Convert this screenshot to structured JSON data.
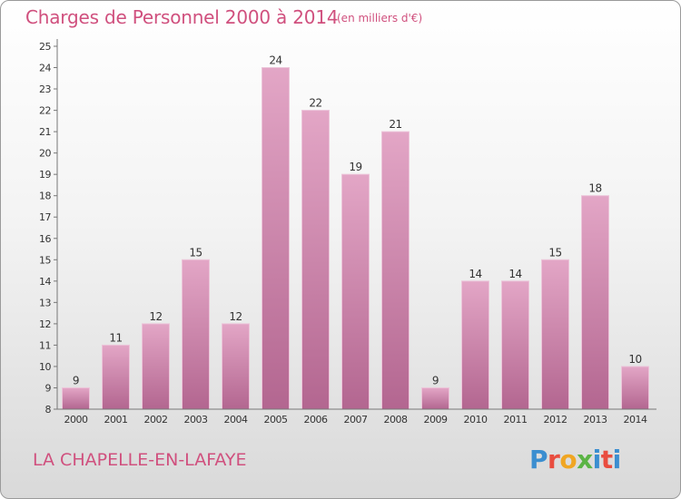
{
  "header": {
    "title": "Charges de Personnel 2000 à 2014",
    "units": "(en milliers d'€)"
  },
  "footer": {
    "commune": "LA CHAPELLE-EN-LAFAYE",
    "logo_letters": [
      "P",
      "r",
      "o",
      "x",
      "i",
      "t",
      "i"
    ]
  },
  "colors": {
    "title": "#d0507e",
    "bar_top": "#e3a6c6",
    "bar_bottom": "#b36690"
  },
  "chart_data": {
    "type": "bar",
    "title": "Charges de Personnel 2000 à 2014",
    "subtitle": "(en milliers d'€)",
    "xlabel": "",
    "ylabel": "",
    "categories": [
      "2000",
      "2001",
      "2002",
      "2003",
      "2004",
      "2005",
      "2006",
      "2007",
      "2008",
      "2009",
      "2010",
      "2011",
      "2012",
      "2013",
      "2014"
    ],
    "values": [
      9,
      11,
      12,
      15,
      12,
      24,
      22,
      19,
      21,
      9,
      14,
      14,
      15,
      18,
      10
    ],
    "ylim": [
      8,
      25
    ],
    "yticks": [
      8,
      9,
      10,
      11,
      12,
      13,
      14,
      15,
      16,
      17,
      18,
      19,
      20,
      21,
      22,
      23,
      24,
      25
    ],
    "grid": false,
    "legend": "none"
  }
}
